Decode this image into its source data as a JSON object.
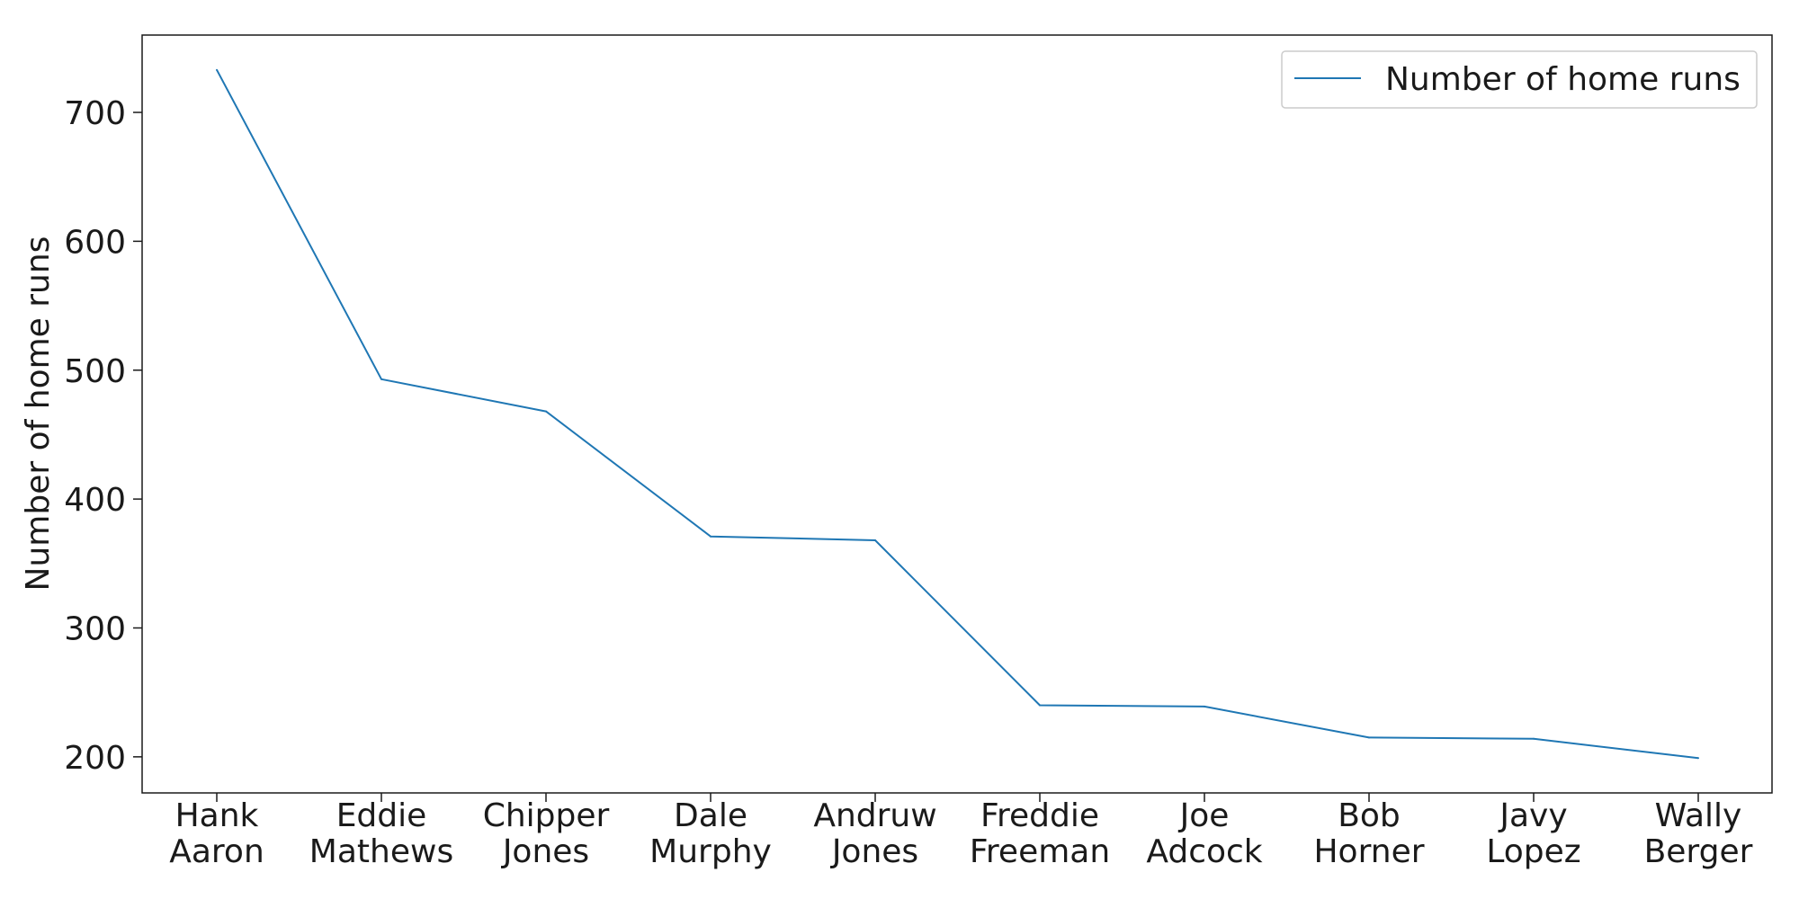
{
  "chart_data": {
    "type": "line",
    "categories": [
      "Hank\nAaron",
      "Eddie\nMathews",
      "Chipper\nJones",
      "Dale\nMurphy",
      "Andruw\nJones",
      "Freddie\nFreeman",
      "Joe\nAdcock",
      "Bob\nHorner",
      "Javy\nLopez",
      "Wally\nBerger"
    ],
    "series": [
      {
        "name": "Number of home runs",
        "values": [
          733,
          493,
          468,
          371,
          368,
          240,
          239,
          215,
          214,
          199
        ],
        "color": "#1f77b4"
      }
    ],
    "title": "",
    "xlabel": "",
    "ylabel": "Number of home runs",
    "ylim": [
      172,
      760
    ],
    "yticks": [
      200,
      300,
      400,
      500,
      600,
      700
    ],
    "grid": false,
    "legend_position": "top-right"
  }
}
